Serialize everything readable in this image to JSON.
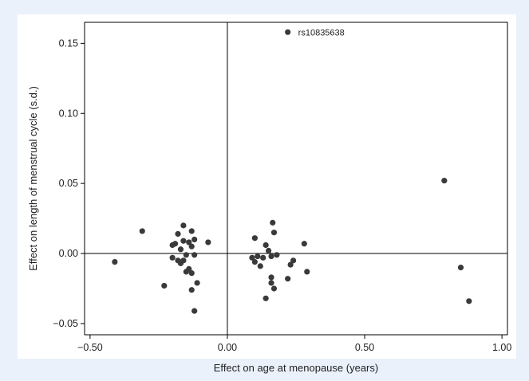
{
  "chart_data": {
    "type": "scatter",
    "xlabel": "Effect on age at menopause (years)",
    "ylabel": "Effect on length of menstrual cycle (s.d.)",
    "xlim": [
      -0.52,
      1.02
    ],
    "ylim": [
      -0.058,
      0.165
    ],
    "xticks": [
      -0.5,
      0,
      0.5,
      1.0
    ],
    "xtick_labels": [
      "−0.50",
      "0.00",
      "0.50",
      "1.00"
    ],
    "yticks": [
      -0.05,
      0,
      0.05,
      0.1,
      0.15
    ],
    "ytick_labels": [
      "−0.05",
      "0.00",
      "0.05",
      "0.10",
      "0.15"
    ],
    "reference_lines": {
      "x": 0,
      "y": 0
    },
    "grid": false,
    "marker_color": "#3a3a3a",
    "annotations": [
      {
        "text": "rs10835638",
        "x": 0.22,
        "y": 0.158
      }
    ],
    "points": [
      {
        "x": -0.41,
        "y": -0.006
      },
      {
        "x": -0.31,
        "y": 0.016
      },
      {
        "x": -0.23,
        "y": -0.023
      },
      {
        "x": -0.2,
        "y": 0.006
      },
      {
        "x": -0.2,
        "y": -0.003
      },
      {
        "x": -0.19,
        "y": 0.007
      },
      {
        "x": -0.18,
        "y": 0.014
      },
      {
        "x": -0.18,
        "y": -0.005
      },
      {
        "x": -0.17,
        "y": 0.003
      },
      {
        "x": -0.17,
        "y": -0.007
      },
      {
        "x": -0.16,
        "y": 0.02
      },
      {
        "x": -0.16,
        "y": 0.009
      },
      {
        "x": -0.16,
        "y": -0.005
      },
      {
        "x": -0.15,
        "y": -0.001
      },
      {
        "x": -0.15,
        "y": -0.013
      },
      {
        "x": -0.14,
        "y": 0.008
      },
      {
        "x": -0.14,
        "y": -0.011
      },
      {
        "x": -0.13,
        "y": 0.005
      },
      {
        "x": -0.13,
        "y": 0.016
      },
      {
        "x": -0.13,
        "y": -0.014
      },
      {
        "x": -0.13,
        "y": -0.026
      },
      {
        "x": -0.12,
        "y": 0.01
      },
      {
        "x": -0.12,
        "y": -0.001
      },
      {
        "x": -0.12,
        "y": -0.041
      },
      {
        "x": -0.11,
        "y": -0.021
      },
      {
        "x": -0.07,
        "y": 0.008
      },
      {
        "x": 0.09,
        "y": -0.003
      },
      {
        "x": 0.1,
        "y": 0.011
      },
      {
        "x": 0.1,
        "y": -0.006
      },
      {
        "x": 0.11,
        "y": -0.002
      },
      {
        "x": 0.12,
        "y": -0.009
      },
      {
        "x": 0.13,
        "y": -0.003
      },
      {
        "x": 0.14,
        "y": 0.006
      },
      {
        "x": 0.14,
        "y": -0.032
      },
      {
        "x": 0.15,
        "y": 0.002
      },
      {
        "x": 0.16,
        "y": -0.002
      },
      {
        "x": 0.16,
        "y": -0.017
      },
      {
        "x": 0.16,
        "y": -0.021
      },
      {
        "x": 0.165,
        "y": 0.022
      },
      {
        "x": 0.17,
        "y": 0.015
      },
      {
        "x": 0.17,
        "y": -0.025
      },
      {
        "x": 0.18,
        "y": -0.001
      },
      {
        "x": 0.22,
        "y": -0.018
      },
      {
        "x": 0.23,
        "y": -0.008
      },
      {
        "x": 0.24,
        "y": -0.005
      },
      {
        "x": 0.28,
        "y": 0.007
      },
      {
        "x": 0.29,
        "y": -0.013
      },
      {
        "x": 0.22,
        "y": 0.158
      },
      {
        "x": 0.79,
        "y": 0.052
      },
      {
        "x": 0.85,
        "y": -0.01
      },
      {
        "x": 0.88,
        "y": -0.034
      }
    ]
  }
}
